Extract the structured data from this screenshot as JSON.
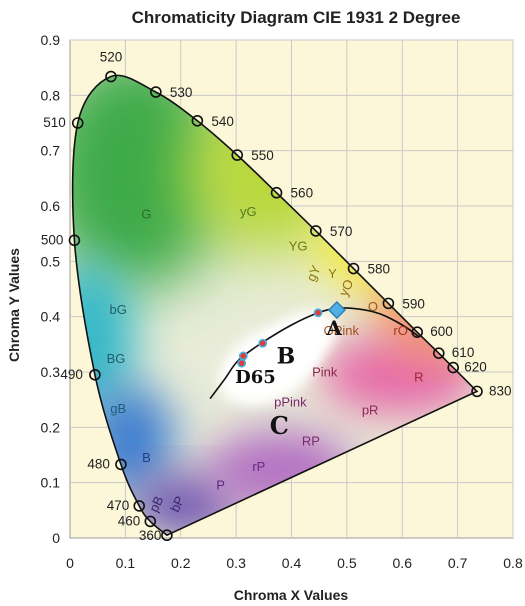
{
  "chart_data": {
    "type": "scatter",
    "title": "Chromaticity Diagram CIE 1931 2 Degree",
    "xlabel": "Chroma X Values",
    "ylabel": "Chroma Y Values",
    "xlim": [
      0,
      0.8
    ],
    "ylim": [
      0,
      0.9
    ],
    "xticks": [
      "0",
      "0.1",
      "0.2",
      "0.3",
      "0.4",
      "0.5",
      "0.6",
      "0.7",
      "0.8"
    ],
    "yticks": [
      "0",
      "0.1",
      "0.2",
      "0.3",
      "0.4",
      "0.5",
      "0.6",
      "0.7",
      "0.8",
      "0.9"
    ],
    "grid": true,
    "spectral_locus": [
      {
        "label": "360",
        "x": 0.175,
        "y": 0.005
      },
      {
        "label": "460",
        "x": 0.145,
        "y": 0.03
      },
      {
        "label": "470",
        "x": 0.125,
        "y": 0.058
      },
      {
        "label": "480",
        "x": 0.092,
        "y": 0.133
      },
      {
        "label": "490",
        "x": 0.045,
        "y": 0.295
      },
      {
        "label": "500",
        "x": 0.008,
        "y": 0.538
      },
      {
        "label": "510",
        "x": 0.014,
        "y": 0.75
      },
      {
        "label": "520",
        "x": 0.074,
        "y": 0.834
      },
      {
        "label": "530",
        "x": 0.155,
        "y": 0.806
      },
      {
        "label": "540",
        "x": 0.23,
        "y": 0.754
      },
      {
        "label": "550",
        "x": 0.302,
        "y": 0.692
      },
      {
        "label": "560",
        "x": 0.373,
        "y": 0.624
      },
      {
        "label": "570",
        "x": 0.444,
        "y": 0.555
      },
      {
        "label": "580",
        "x": 0.512,
        "y": 0.487
      },
      {
        "label": "590",
        "x": 0.575,
        "y": 0.424
      },
      {
        "label": "600",
        "x": 0.627,
        "y": 0.372
      },
      {
        "label": "610",
        "x": 0.666,
        "y": 0.334
      },
      {
        "label": "620",
        "x": 0.692,
        "y": 0.308
      },
      {
        "label": "830",
        "x": 0.735,
        "y": 0.265
      }
    ],
    "color_regions": [
      {
        "label": "G",
        "x": 0.138,
        "y": 0.577
      },
      {
        "label": "yG",
        "x": 0.322,
        "y": 0.582
      },
      {
        "label": "YG",
        "x": 0.412,
        "y": 0.52
      },
      {
        "label": "gY",
        "x": 0.447,
        "y": 0.475
      },
      {
        "label": "Y",
        "x": 0.474,
        "y": 0.47
      },
      {
        "label": "yO",
        "x": 0.506,
        "y": 0.449
      },
      {
        "label": "O",
        "x": 0.547,
        "y": 0.41
      },
      {
        "label": "bG",
        "x": 0.087,
        "y": 0.405
      },
      {
        "label": "BG",
        "x": 0.083,
        "y": 0.316
      },
      {
        "label": "gB",
        "x": 0.087,
        "y": 0.226
      },
      {
        "label": "B",
        "x": 0.138,
        "y": 0.137
      },
      {
        "label": "OPink",
        "x": 0.49,
        "y": 0.367
      },
      {
        "label": "rO",
        "x": 0.597,
        "y": 0.367
      },
      {
        "label": "Pink",
        "x": 0.46,
        "y": 0.292
      },
      {
        "label": "R",
        "x": 0.63,
        "y": 0.283
      },
      {
        "label": "pPink",
        "x": 0.398,
        "y": 0.238
      },
      {
        "label": "pR",
        "x": 0.542,
        "y": 0.223
      },
      {
        "label": "RP",
        "x": 0.435,
        "y": 0.167
      },
      {
        "label": "rP",
        "x": 0.341,
        "y": 0.121
      },
      {
        "label": "P",
        "x": 0.272,
        "y": 0.088
      },
      {
        "label": "bP",
        "x": 0.201,
        "y": 0.058
      },
      {
        "label": "pB",
        "x": 0.163,
        "y": 0.058
      }
    ],
    "planckian_locus": [
      {
        "x": 0.253,
        "y": 0.252
      },
      {
        "x": 0.28,
        "y": 0.288
      },
      {
        "x": 0.305,
        "y": 0.322
      },
      {
        "x": 0.35,
        "y": 0.355
      },
      {
        "x": 0.4,
        "y": 0.385
      },
      {
        "x": 0.448,
        "y": 0.407
      },
      {
        "x": 0.48,
        "y": 0.415
      },
      {
        "x": 0.52,
        "y": 0.414
      },
      {
        "x": 0.56,
        "y": 0.405
      },
      {
        "x": 0.6,
        "y": 0.385
      },
      {
        "x": 0.63,
        "y": 0.364
      }
    ],
    "illuminants": [
      {
        "label": "A",
        "x": 0.448,
        "y": 0.407
      },
      {
        "label": "B",
        "x": 0.348,
        "y": 0.352
      },
      {
        "label": "C",
        "x": 0.31,
        "y": 0.316
      },
      {
        "label": "D65",
        "x": 0.313,
        "y": 0.329
      }
    ],
    "annotations": [
      {
        "label": "A",
        "x": 0.477,
        "y": 0.367
      },
      {
        "label": "B",
        "x": 0.39,
        "y": 0.315
      },
      {
        "label": "C",
        "x": 0.378,
        "y": 0.188
      },
      {
        "label": "D65",
        "x": 0.335,
        "y": 0.28
      }
    ],
    "highlight_marker": {
      "x": 0.482,
      "y": 0.412
    }
  }
}
